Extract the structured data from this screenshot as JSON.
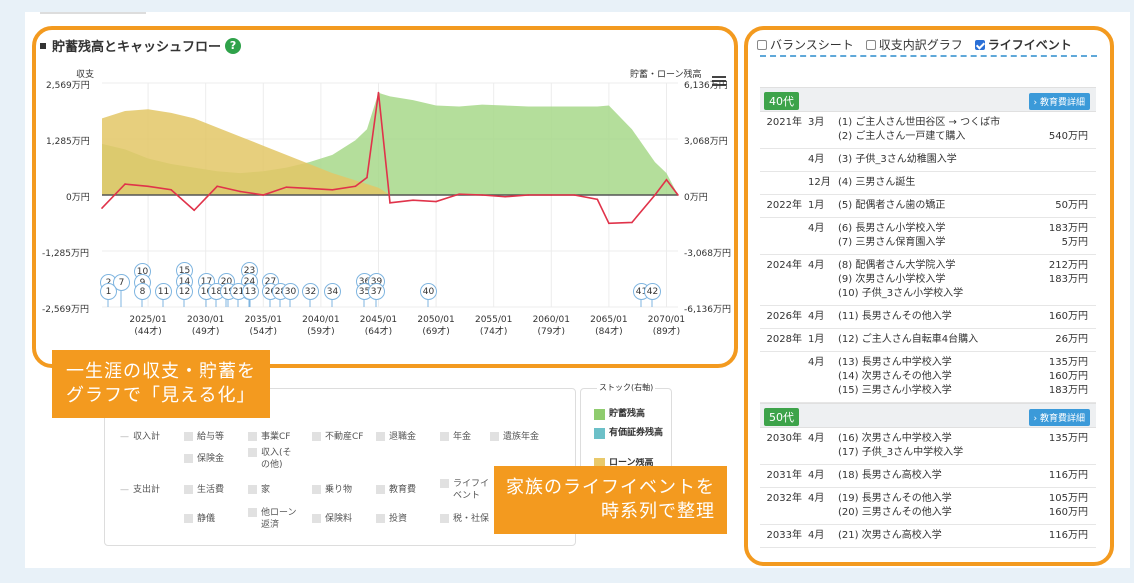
{
  "chart_title": "貯蓄残高とキャッシュフロー",
  "help_icon": "?",
  "left_axis_label": "収支",
  "right_axis_label": "貯蓄・ローン残高",
  "left_ticks": [
    "2,569万円",
    "1,285万円",
    "0万円",
    "-1,285万円",
    "-2,569万円"
  ],
  "right_ticks": [
    "6,136万円",
    "3,068万円",
    "0万円",
    "-3,068万円",
    "-6,136万円"
  ],
  "x_years": [
    "2025/01",
    "2030/01",
    "2035/01",
    "2040/01",
    "2045/01",
    "2050/01",
    "2055/01",
    "2060/01",
    "2065/01",
    "2070/01"
  ],
  "x_ages": [
    "(44才)",
    "(49才)",
    "(54才)",
    "(59才)",
    "(64才)",
    "(69才)",
    "(74才)",
    "(79才)",
    "(84才)",
    "(89才)"
  ],
  "event_markers": [
    "2",
    "7",
    "1",
    "10",
    "9",
    "8",
    "11",
    "15",
    "14",
    "12",
    "17",
    "16",
    "20",
    "18",
    "19",
    "23",
    "24",
    "25",
    "21",
    "13",
    "27",
    "26",
    "28",
    "30",
    "32",
    "34",
    "36",
    "39",
    "35",
    "37",
    "40",
    "41",
    "42"
  ],
  "callout_left": [
    "一生涯の収支・貯蓄を",
    "グラフで「見える化」"
  ],
  "callout_right": [
    "家族のライフイベントを",
    "時系列で整理"
  ],
  "legend": {
    "income_total": "収入計",
    "expense_total": "支出計",
    "items": [
      "給与等",
      "事業CF",
      "不動産CF",
      "退職金",
      "年金",
      "遺族年金",
      "保険金",
      "収入(その他)",
      "生活費",
      "家",
      "乗り物",
      "教育費",
      "ライフイベント",
      "静儀",
      "他ローン返済",
      "保険料",
      "投資",
      "税・社保"
    ]
  },
  "stock": {
    "title": "ストック(右軸)",
    "items": [
      {
        "label": "貯蓄残高",
        "color": "#8fcc6e"
      },
      {
        "label": "有価証券残高",
        "color": "#6cc0c8"
      },
      {
        "label": "ローン残高",
        "color": "#e9c96a"
      }
    ]
  },
  "tabs": [
    {
      "label": "バランスシート",
      "checked": false
    },
    {
      "label": "収支内訳グラフ",
      "checked": false
    },
    {
      "label": "ライフイベント",
      "checked": true
    }
  ],
  "edu_button": "教育費詳細",
  "age_groups": [
    {
      "age": "40代",
      "rows": [
        {
          "year": "2021年",
          "month": "3月",
          "items": [
            [
              "(1) ご主人さん世田谷区 → つくば市",
              ""
            ],
            [
              "(2) ご主人さん一戸建て購入",
              "540万円"
            ]
          ]
        },
        {
          "year": "",
          "month": "4月",
          "items": [
            [
              "(3) 子供_3さん幼稚園入学",
              ""
            ]
          ]
        },
        {
          "year": "",
          "month": "12月",
          "items": [
            [
              "(4) 三男さん誕生",
              ""
            ]
          ]
        },
        {
          "year": "2022年",
          "month": "1月",
          "items": [
            [
              "(5) 配偶者さん歯の矯正",
              "50万円"
            ]
          ]
        },
        {
          "year": "",
          "month": "4月",
          "items": [
            [
              "(6) 長男さん小学校入学",
              "183万円"
            ],
            [
              "(7) 三男さん保育園入学",
              "5万円"
            ]
          ]
        },
        {
          "year": "2024年",
          "month": "4月",
          "items": [
            [
              "(8) 配偶者さん大学院入学",
              "212万円"
            ],
            [
              "(9) 次男さん小学校入学",
              "183万円"
            ],
            [
              "(10) 子供_3さん小学校入学",
              ""
            ]
          ]
        },
        {
          "year": "2026年",
          "month": "4月",
          "items": [
            [
              "(11) 長男さんその他入学",
              "160万円"
            ]
          ]
        },
        {
          "year": "2028年",
          "month": "1月",
          "items": [
            [
              "(12) ご主人さん自転車4台購入",
              "26万円"
            ]
          ]
        },
        {
          "year": "",
          "month": "4月",
          "items": [
            [
              "(13) 長男さん中学校入学",
              "135万円"
            ],
            [
              "(14) 次男さんその他入学",
              "160万円"
            ],
            [
              "(15) 三男さん小学校入学",
              "183万円"
            ]
          ]
        }
      ]
    },
    {
      "age": "50代",
      "rows": [
        {
          "year": "2030年",
          "month": "4月",
          "items": [
            [
              "(16) 次男さん中学校入学",
              "135万円"
            ],
            [
              "(17) 子供_3さん中学校入学",
              ""
            ]
          ]
        },
        {
          "year": "2031年",
          "month": "4月",
          "items": [
            [
              "(18) 長男さん高校入学",
              "116万円"
            ]
          ]
        },
        {
          "year": "2032年",
          "month": "4月",
          "items": [
            [
              "(19) 長男さんその他入学",
              "105万円"
            ],
            [
              "(20) 三男さんその他入学",
              "160万円"
            ]
          ]
        },
        {
          "year": "2033年",
          "month": "4月",
          "items": [
            [
              "(21) 次男さん高校入学",
              "116万円"
            ]
          ]
        }
      ]
    }
  ],
  "chart_data": {
    "type": "area",
    "x": [
      2021,
      2023,
      2025,
      2027,
      2029,
      2031,
      2033,
      2035,
      2037,
      2039,
      2041,
      2043,
      2044,
      2045,
      2046,
      2048,
      2050,
      2052,
      2054,
      2056,
      2058,
      2060,
      2062,
      2064,
      2065,
      2067,
      2069,
      2070,
      2071
    ],
    "series": [
      {
        "name": "貯蓄残高",
        "values": [
          2800,
          2500,
          2000,
          1700,
          1500,
          1300,
          1200,
          1300,
          1500,
          1800,
          2200,
          3000,
          3600,
          5600,
          5400,
          5200,
          4900,
          4850,
          4950,
          4900,
          4850,
          4850,
          4850,
          4850,
          4900,
          3600,
          1800,
          1200,
          0
        ]
      },
      {
        "name": "ローン残高",
        "values": [
          4200,
          4600,
          4700,
          4500,
          4200,
          3700,
          3200,
          2700,
          2200,
          1700,
          1200,
          800,
          600,
          400,
          0,
          0,
          0,
          0,
          0,
          0,
          0,
          0,
          0,
          0,
          0,
          0,
          0,
          0,
          0
        ]
      },
      {
        "name": "収支",
        "values": [
          -300,
          250,
          200,
          120,
          -350,
          200,
          80,
          0,
          180,
          150,
          120,
          200,
          400,
          2350,
          -180,
          -120,
          -150,
          20,
          0,
          -40,
          0,
          0,
          0,
          -100,
          -650,
          -630,
          0,
          350,
          0
        ]
      }
    ],
    "ylim_left": [
      -2569,
      2569
    ],
    "ylim_right": [
      -6136,
      6136
    ]
  }
}
